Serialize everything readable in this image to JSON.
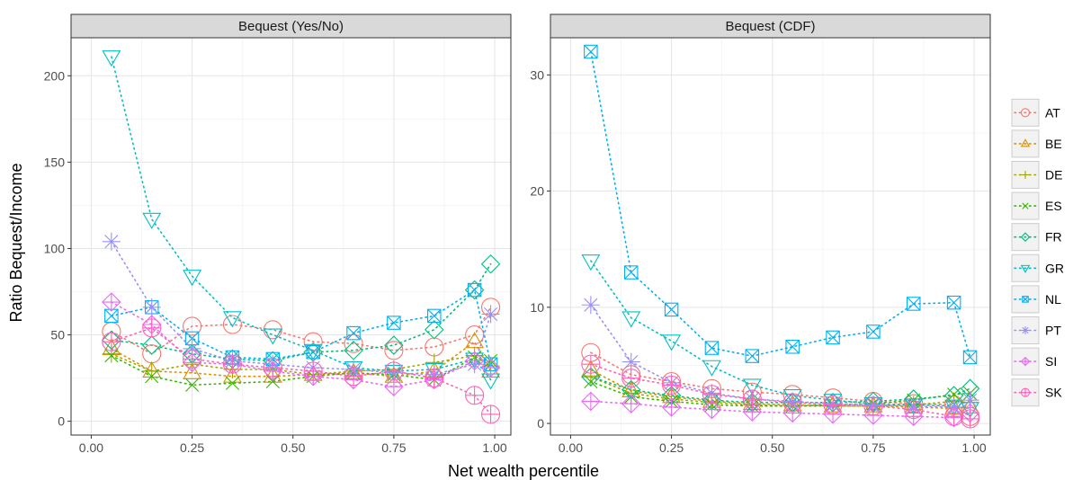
{
  "chart_data": {
    "type": "line",
    "xlabel": "Net wealth percentile",
    "ylabel": "Ratio Bequest/Income",
    "x": [
      0.05,
      0.15,
      0.25,
      0.35,
      0.45,
      0.55,
      0.65,
      0.75,
      0.85,
      0.95,
      0.99
    ],
    "grid": true,
    "legend_position": "right",
    "facets": [
      {
        "title": "Bequest (Yes/No)",
        "xlim": [
          -0.05,
          1.04
        ],
        "ylim": [
          -8,
          222
        ],
        "x_ticks": [
          0.0,
          0.25,
          0.5,
          0.75,
          1.0
        ],
        "x_tick_labels": [
          "0.00",
          "0.25",
          "0.50",
          "0.75",
          "1.00"
        ],
        "y_ticks": [
          0,
          50,
          100,
          150,
          200
        ],
        "y_tick_labels": [
          "0",
          "50",
          "100",
          "150",
          "200"
        ],
        "series": [
          {
            "name": "AT",
            "values": [
              52,
              39,
              55,
              56,
              53,
              46,
              45,
              41,
              43,
              50,
              66
            ]
          },
          {
            "name": "BE",
            "values": [
              42,
              29,
              28,
              26,
              26,
              27,
              28,
              26,
              29,
              46,
              29
            ]
          },
          {
            "name": "DE",
            "values": [
              39,
              29,
              33,
              30,
              30,
              27,
              29,
              30,
              34,
              38,
              32
            ]
          },
          {
            "name": "ES",
            "values": [
              38,
              26,
              21,
              22,
              23,
              26,
              28,
              27,
              24,
              37,
              35
            ]
          },
          {
            "name": "FR",
            "values": [
              47,
              44,
              39,
              36,
              35,
              40,
              41,
              44,
              53,
              76,
              91
            ]
          },
          {
            "name": "GR",
            "values": [
              211,
              117,
              84,
              60,
              50,
              41,
              31,
              29,
              30,
              36,
              24
            ]
          },
          {
            "name": "NL",
            "values": [
              61,
              66,
              48,
              37,
              36,
              40,
              51,
              57,
              61,
              76,
              33
            ]
          },
          {
            "name": "PT",
            "values": [
              104,
              66,
              42,
              35,
              33,
              31,
              30,
              28,
              27,
              33,
              62
            ]
          },
          {
            "name": "SI",
            "values": [
              69,
              56,
              34,
              33,
              29,
              26,
              24,
              20,
              24,
              35,
              31
            ]
          },
          {
            "name": "SK",
            "values": [
              46,
              54,
              36,
              33,
              31,
              29,
              26,
              29,
              25,
              15,
              4
            ]
          }
        ]
      },
      {
        "title": "Bequest (CDF)",
        "xlim": [
          -0.05,
          1.04
        ],
        "ylim": [
          -1,
          33.2
        ],
        "x_ticks": [
          0.0,
          0.25,
          0.5,
          0.75,
          1.0
        ],
        "x_tick_labels": [
          "0.00",
          "0.25",
          "0.50",
          "0.75",
          "1.00"
        ],
        "y_ticks": [
          0,
          10,
          20,
          30
        ],
        "y_tick_labels": [
          "0",
          "10",
          "20",
          "30"
        ],
        "series": [
          {
            "name": "AT",
            "values": [
              6.1,
              4.2,
              3.6,
              3.0,
              2.7,
              2.5,
              2.2,
              1.9,
              1.7,
              1.6,
              0.6
            ]
          },
          {
            "name": "BE",
            "values": [
              4.6,
              2.8,
              2.3,
              1.9,
              1.7,
              1.6,
              1.5,
              1.5,
              1.4,
              1.3,
              1.4
            ]
          },
          {
            "name": "DE",
            "values": [
              4.0,
              2.6,
              2.1,
              1.8,
              1.6,
              1.5,
              1.5,
              1.5,
              1.6,
              1.9,
              1.8
            ]
          },
          {
            "name": "ES",
            "values": [
              3.6,
              2.3,
              1.9,
              1.6,
              1.5,
              1.5,
              1.6,
              1.7,
              2.0,
              2.5,
              2.6
            ]
          },
          {
            "name": "FR",
            "values": [
              4.0,
              2.9,
              2.4,
              2.0,
              1.8,
              1.8,
              1.8,
              1.9,
              2.1,
              2.4,
              3.0
            ]
          },
          {
            "name": "GR",
            "values": [
              14.0,
              9.1,
              7.1,
              4.9,
              3.3,
              2.4,
              2.0,
              1.7,
              1.6,
              1.5,
              1.3
            ]
          },
          {
            "name": "NL",
            "values": [
              32.0,
              13.0,
              9.8,
              6.5,
              5.8,
              6.6,
              7.4,
              7.9,
              10.3,
              10.4,
              5.7
            ]
          },
          {
            "name": "PT",
            "values": [
              10.2,
              5.3,
              3.5,
              2.6,
              2.1,
              1.9,
              1.7,
              1.6,
              1.5,
              1.4,
              2.0
            ]
          },
          {
            "name": "SI",
            "values": [
              1.9,
              1.7,
              1.4,
              1.2,
              1.0,
              0.9,
              0.8,
              0.7,
              0.6,
              0.5,
              0.9
            ]
          },
          {
            "name": "SK",
            "values": [
              5.1,
              3.9,
              3.3,
              2.5,
              2.1,
              1.8,
              1.6,
              1.5,
              1.2,
              0.6,
              0.4
            ]
          }
        ]
      }
    ],
    "legend": [
      {
        "name": "AT",
        "color": "#F8766D",
        "shape": "circle"
      },
      {
        "name": "BE",
        "color": "#D89000",
        "shape": "triangle-up"
      },
      {
        "name": "DE",
        "color": "#A3A500",
        "shape": "plus"
      },
      {
        "name": "ES",
        "color": "#39B600",
        "shape": "cross"
      },
      {
        "name": "FR",
        "color": "#00BF7D",
        "shape": "diamond"
      },
      {
        "name": "GR",
        "color": "#00BFC4",
        "shape": "triangle-down"
      },
      {
        "name": "NL",
        "color": "#00B0F6",
        "shape": "square-cross"
      },
      {
        "name": "PT",
        "color": "#9590FF",
        "shape": "asterisk"
      },
      {
        "name": "SI",
        "color": "#E76BF3",
        "shape": "diamond-plus"
      },
      {
        "name": "SK",
        "color": "#FF62BC",
        "shape": "circle-plus"
      }
    ]
  }
}
